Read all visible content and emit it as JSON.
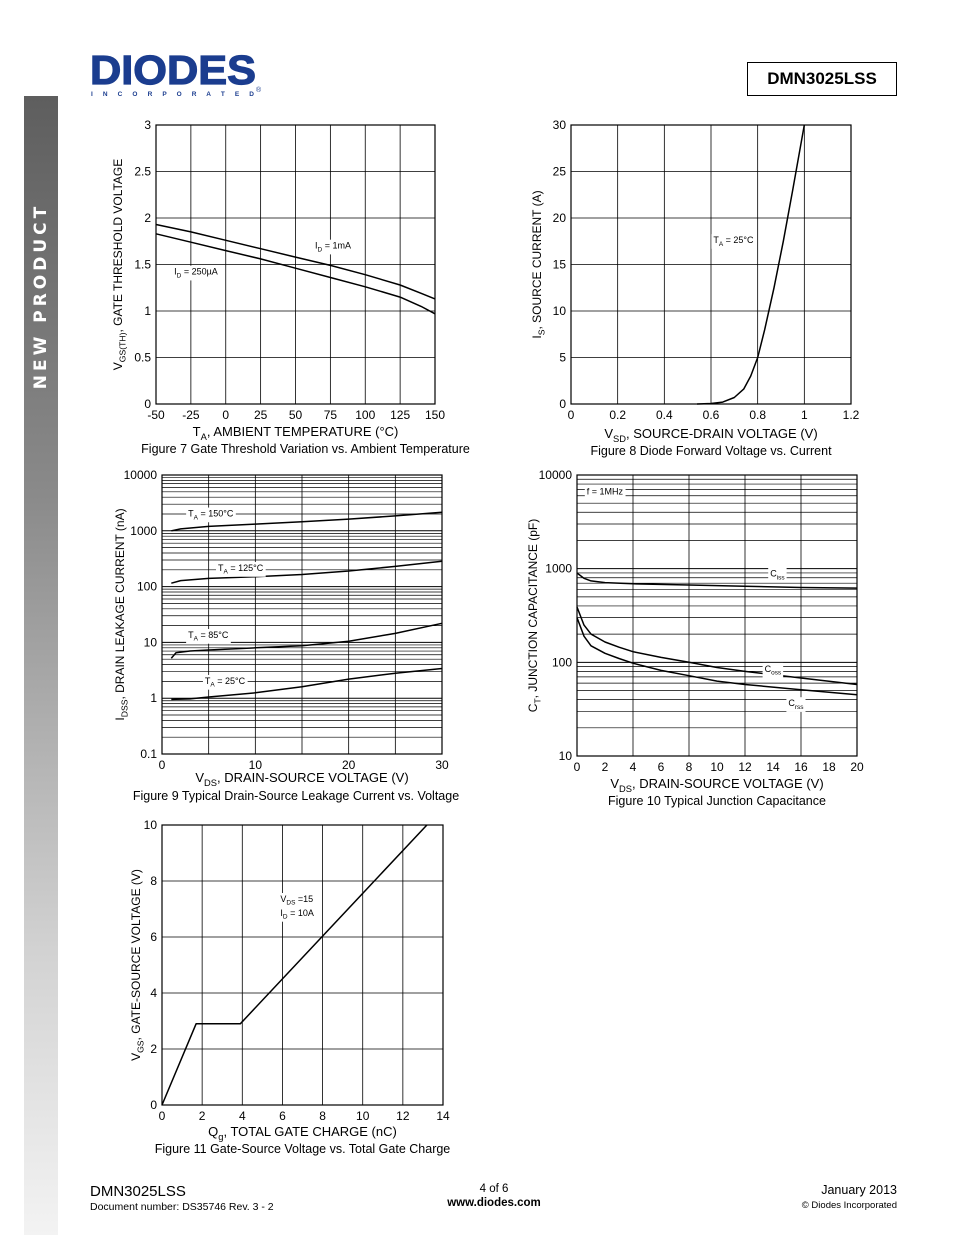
{
  "sidebar": {
    "label": "NEW PRODUCT"
  },
  "header": {
    "logo": {
      "name": "DIODES",
      "tagline": "I N C O R P O R A T E D",
      "reg": "®"
    },
    "part_number": "DMN3025LSS"
  },
  "colors": {
    "text": "#000000",
    "sidebar_dark": "#5e5e5e",
    "logo_blue": "#1b3d8f"
  },
  "chart_data": [
    {
      "id": "fig7",
      "type": "line",
      "caption": "Figure 7  Gate Threshold Variation vs. Ambient Temperature",
      "xlabel_main": "T",
      "xlabel_sub": "A",
      "xlabel_rest": ", AMBIENT TEMPERATURE (°C)",
      "ylabel_main": "V",
      "ylabel_sub": "GS(TH)",
      "ylabel_rest": ", GATE THRESHOLD VOLTAGE",
      "xlim": [
        -50,
        150
      ],
      "ylim": [
        0,
        3
      ],
      "xticks": [
        -50,
        -25,
        0,
        25,
        50,
        75,
        100,
        125,
        150
      ],
      "yticks": [
        0,
        0.5,
        1,
        1.5,
        2,
        2.5,
        3
      ],
      "ytick_labels": [
        "0",
        "0.5",
        "1",
        "1.5",
        "2",
        "2.5",
        "3"
      ],
      "xgrid": [
        -50,
        -25,
        0,
        25,
        50,
        75,
        100,
        125,
        150
      ],
      "ygrid": [
        0,
        0.5,
        1,
        1.5,
        2,
        2.5,
        3
      ],
      "series": [
        {
          "name": "ID = 1mA",
          "x": [
            -50,
            -25,
            0,
            25,
            50,
            75,
            100,
            125,
            140,
            150
          ],
          "y": [
            1.93,
            1.85,
            1.76,
            1.67,
            1.58,
            1.49,
            1.39,
            1.28,
            1.19,
            1.13
          ]
        },
        {
          "name": "ID = 250µA",
          "x": [
            -50,
            -25,
            0,
            25,
            50,
            75,
            100,
            125,
            140,
            150
          ],
          "y": [
            1.83,
            1.74,
            1.65,
            1.56,
            1.46,
            1.36,
            1.26,
            1.15,
            1.05,
            0.97
          ]
        }
      ],
      "annotations": [
        {
          "main": "I",
          "sub": "D",
          "rest": " = 1mA",
          "ax": 64,
          "ay": 1.67
        },
        {
          "main": "I",
          "sub": "D",
          "rest": " = 250µA",
          "ax": -37,
          "ay": 1.39
        }
      ]
    },
    {
      "id": "fig8",
      "type": "line",
      "caption": "Figure 8  Diode Forward Voltage vs. Current",
      "xlabel_main": "V",
      "xlabel_sub": "SD",
      "xlabel_rest": ", SOURCE-DRAIN VOLTAGE (V)",
      "ylabel_main": "I",
      "ylabel_sub": "S",
      "ylabel_rest": ", SOURCE CURRENT (A)",
      "xlim": [
        0,
        1.2
      ],
      "ylim": [
        0,
        30
      ],
      "xticks": [
        0,
        0.2,
        0.4,
        0.6,
        0.8,
        1,
        1.2
      ],
      "yticks": [
        0,
        5,
        10,
        15,
        20,
        25,
        30
      ],
      "ytick_labels": [
        "0",
        "5",
        "10",
        "15",
        "20",
        "25",
        "30"
      ],
      "xgrid": [
        0,
        0.2,
        0.4,
        0.6,
        0.8,
        1.0,
        1.2
      ],
      "ygrid": [
        0,
        5,
        10,
        15,
        20,
        25,
        30
      ],
      "series": [
        {
          "name": "TA = 25°C",
          "x": [
            0.54,
            0.6,
            0.65,
            0.7,
            0.74,
            0.77,
            0.8,
            0.83,
            0.87,
            0.91,
            0.95,
            1.0
          ],
          "y": [
            0,
            0.05,
            0.2,
            0.7,
            1.6,
            3.0,
            5.0,
            8.0,
            12.5,
            17.5,
            23.0,
            30.0
          ]
        }
      ],
      "annotations": [
        {
          "main": "T",
          "sub": "A",
          "rest": " = 25°C",
          "ax": 0.61,
          "ay": 17.3
        }
      ]
    },
    {
      "id": "fig9",
      "type": "line",
      "yscale": "log",
      "caption": "Figure 9  Typical Drain-Source Leakage Current vs. Voltage",
      "xlabel_main": "V",
      "xlabel_sub": "DS",
      "xlabel_rest": ", DRAIN-SOURCE VOLTAGE (V)",
      "ylabel_main": "I",
      "ylabel_sub": "DSS",
      "ylabel_rest": ", DRAIN LEAKAGE CURRENT (nA)",
      "xlim": [
        0,
        30
      ],
      "ylim": [
        0.1,
        10000
      ],
      "xticks": [
        0,
        10,
        20,
        30
      ],
      "yticks": [
        0.1,
        1,
        10,
        100,
        1000,
        10000
      ],
      "ytick_labels": [
        "0.1",
        "1",
        "10",
        "100",
        "1000",
        "10000"
      ],
      "xgrid": [
        0,
        5,
        10,
        15,
        20,
        25,
        30
      ],
      "series": [
        {
          "name": "TA = 150°C",
          "x": [
            1,
            2,
            5,
            10,
            15,
            20,
            25,
            30
          ],
          "y": [
            1000,
            1080,
            1200,
            1320,
            1450,
            1620,
            1850,
            2150
          ]
        },
        {
          "name": "TA = 125°C",
          "x": [
            1,
            2,
            5,
            10,
            15,
            20,
            25,
            30
          ],
          "y": [
            115,
            128,
            140,
            150,
            165,
            190,
            230,
            285
          ]
        },
        {
          "name": "TA = 85°C",
          "x": [
            1,
            1.5,
            3,
            5,
            10,
            15,
            20,
            25,
            30
          ],
          "y": [
            5.2,
            6.5,
            7.0,
            7.3,
            8.0,
            8.7,
            10.5,
            14.5,
            22.0
          ]
        },
        {
          "name": "TA = 25°C",
          "x": [
            1,
            3,
            5,
            10,
            15,
            20,
            25,
            30
          ],
          "y": [
            0.95,
            0.97,
            1.05,
            1.25,
            1.6,
            2.2,
            2.8,
            3.4
          ]
        }
      ],
      "annotations": [
        {
          "main": "T",
          "sub": "A",
          "rest": " = 150°C",
          "ax": 2.8,
          "ay": 1800
        },
        {
          "main": "T",
          "sub": "A",
          "rest": " = 125°C",
          "ax": 6,
          "ay": 190
        },
        {
          "main": "T",
          "sub": "A",
          "rest": " = 85°C",
          "ax": 2.8,
          "ay": 12
        },
        {
          "main": "T",
          "sub": "A",
          "rest": " = 25°C",
          "ax": 4.6,
          "ay": 1.8
        }
      ]
    },
    {
      "id": "fig10",
      "type": "line",
      "yscale": "log",
      "caption": "Figure 10  Typical Junction Capacitance",
      "xlabel_main": "V",
      "xlabel_sub": "DS",
      "xlabel_rest": ", DRAIN-SOURCE VOLTAGE (V)",
      "ylabel_main": "C",
      "ylabel_sub": "T",
      "ylabel_rest": ", JUNCTION CAPACITANCE (pF)",
      "xlim": [
        0,
        20
      ],
      "ylim": [
        10,
        10000
      ],
      "xticks": [
        0,
        2,
        4,
        6,
        8,
        10,
        12,
        14,
        16,
        18,
        20
      ],
      "yticks": [
        10,
        100,
        1000,
        10000
      ],
      "ytick_labels": [
        "10",
        "100",
        "1000",
        "10000"
      ],
      "xgrid": [
        0,
        4,
        8,
        12,
        16,
        20
      ],
      "series": [
        {
          "name": "Ciss",
          "x": [
            0,
            0.5,
            1,
            2,
            4,
            8,
            12,
            16,
            20
          ],
          "y": [
            900,
            790,
            740,
            710,
            690,
            670,
            650,
            630,
            620
          ]
        },
        {
          "name": "Coss",
          "x": [
            0,
            0.5,
            1,
            2,
            3,
            4,
            6,
            8,
            10,
            12,
            16,
            20
          ],
          "y": [
            390,
            250,
            200,
            165,
            145,
            130,
            113,
            100,
            88,
            80,
            68,
            58
          ]
        },
        {
          "name": "Crss",
          "x": [
            0,
            0.5,
            1,
            2,
            3,
            4,
            6,
            8,
            10,
            12,
            16,
            20
          ],
          "y": [
            300,
            190,
            150,
            125,
            110,
            98,
            82,
            72,
            63,
            58,
            51,
            45
          ]
        }
      ],
      "annotations": [
        {
          "main": "f = 1MHz",
          "sub": "",
          "rest": "",
          "ax": 0.7,
          "ay": 6200
        },
        {
          "main": "C",
          "sub": "iss",
          "rest": "",
          "ax": 13.8,
          "ay": 820
        },
        {
          "main": "C",
          "sub": "oss",
          "rest": "",
          "ax": 13.4,
          "ay": 79
        },
        {
          "main": "C",
          "sub": "rss",
          "rest": "",
          "ax": 15.1,
          "ay": 34
        }
      ]
    },
    {
      "id": "fig11",
      "type": "line",
      "caption": "Figure 11  Gate-Source Voltage vs. Total Gate Charge",
      "xlabel_main": "Q",
      "xlabel_sub": "g",
      "xlabel_rest": ", TOTAL GATE CHARGE (nC)",
      "ylabel_main": "V",
      "ylabel_sub": "GS",
      "ylabel_rest": ", GATE-SOURCE VOLTAGE (V)",
      "xlim": [
        0,
        14
      ],
      "ylim": [
        0,
        10
      ],
      "xticks": [
        0,
        2,
        4,
        6,
        8,
        10,
        12,
        14
      ],
      "yticks": [
        0,
        2,
        4,
        6,
        8,
        10
      ],
      "ytick_labels": [
        "0",
        "2",
        "4",
        "6",
        "8",
        "10"
      ],
      "xgrid": [
        0,
        2,
        4,
        6,
        8,
        10,
        12,
        14
      ],
      "ygrid": [
        0,
        2,
        4,
        6,
        8,
        10
      ],
      "series": [
        {
          "name": "Gate charge",
          "x": [
            0,
            1.7,
            3.9,
            13.2
          ],
          "y": [
            0,
            2.9,
            2.9,
            10
          ]
        }
      ],
      "annotations": [
        {
          "main": "V",
          "sub": "DS",
          "rest": " =15",
          "ax": 5.9,
          "ay": 7.25
        },
        {
          "main": "I",
          "sub": "D",
          "rest": " = 10A",
          "ax": 5.9,
          "ay": 6.75
        }
      ]
    }
  ],
  "footer": {
    "part": "DMN3025LSS",
    "docnum": "Document number: DS35746 Rev. 3 - 2",
    "page": "4 of 6",
    "url": "www.diodes.com",
    "date": "January 2013",
    "copyright": "© Diodes Incorporated"
  }
}
